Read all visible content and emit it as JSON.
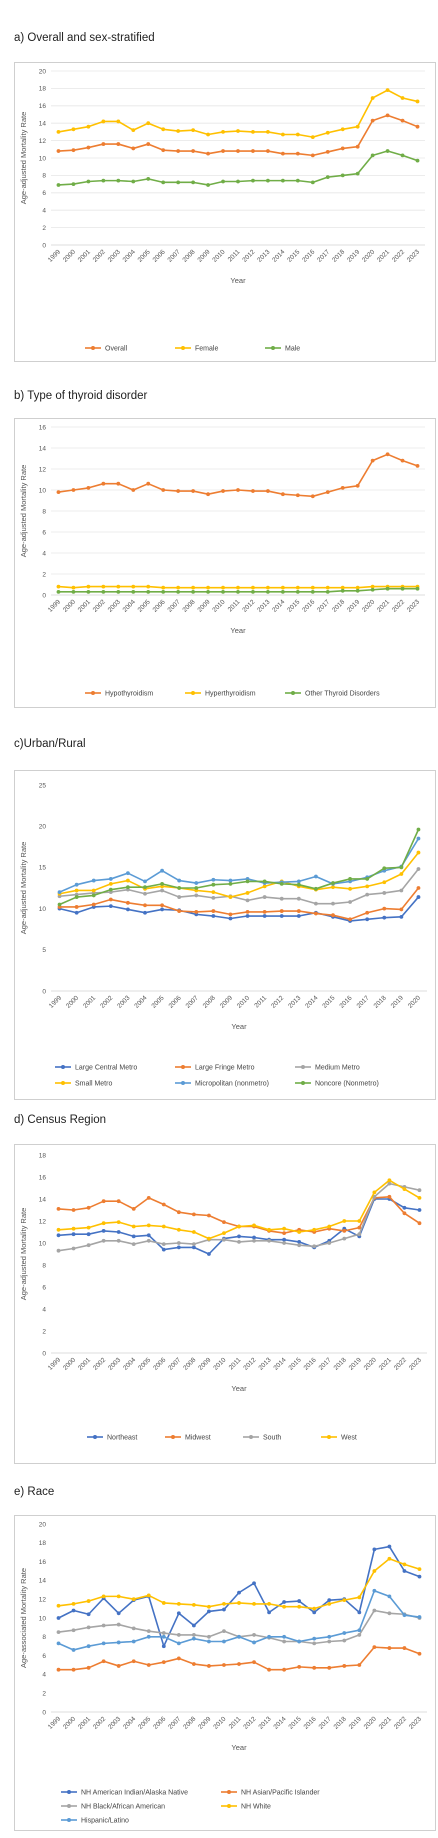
{
  "chart_data": [
    {
      "id": "a",
      "type": "line",
      "title": "a) Overall and sex-stratified",
      "xlabel": "Year",
      "ylabel": "Age-adjusted Mortality Rate",
      "ylim": [
        0,
        20
      ],
      "yticks": [
        0,
        2,
        4,
        6,
        8,
        10,
        12,
        14,
        16,
        18,
        20
      ],
      "grid": true,
      "legend": "bottom",
      "categories": [
        "1999",
        "2000",
        "2001",
        "2002",
        "2003",
        "2004",
        "2005",
        "2006",
        "2007",
        "2008",
        "2009",
        "2010",
        "2011",
        "2012",
        "2013",
        "2014",
        "2015",
        "2016",
        "2017",
        "2018",
        "2019",
        "2020",
        "2021",
        "2022",
        "2023"
      ],
      "series": [
        {
          "name": "Overall",
          "color": "#ed7d31",
          "values": [
            10.8,
            10.9,
            11.2,
            11.6,
            11.6,
            11.1,
            11.6,
            10.9,
            10.8,
            10.8,
            10.5,
            10.8,
            10.8,
            10.8,
            10.8,
            10.5,
            10.5,
            10.3,
            10.7,
            11.1,
            11.3,
            14.3,
            14.9,
            14.3,
            13.6
          ]
        },
        {
          "name": "Female",
          "color": "#ffc000",
          "values": [
            13.0,
            13.3,
            13.6,
            14.2,
            14.2,
            13.2,
            14.0,
            13.3,
            13.1,
            13.2,
            12.7,
            13.0,
            13.1,
            13.0,
            13.0,
            12.7,
            12.7,
            12.4,
            12.9,
            13.3,
            13.6,
            16.9,
            17.8,
            16.9,
            16.5
          ]
        },
        {
          "name": "Male",
          "color": "#70ad47",
          "values": [
            6.9,
            7.0,
            7.3,
            7.4,
            7.4,
            7.3,
            7.6,
            7.2,
            7.2,
            7.2,
            6.9,
            7.3,
            7.3,
            7.4,
            7.4,
            7.4,
            7.4,
            7.2,
            7.8,
            8.0,
            8.2,
            10.3,
            10.8,
            10.3,
            9.7
          ]
        }
      ]
    },
    {
      "id": "b",
      "type": "line",
      "title": "b) Type of thyroid disorder",
      "xlabel": "Year",
      "ylabel": "Age-adjusted Mortality Rate",
      "ylim": [
        0,
        16
      ],
      "yticks": [
        0,
        2,
        4,
        6,
        8,
        10,
        12,
        14,
        16
      ],
      "grid": true,
      "legend": "bottom",
      "categories": [
        "1999",
        "2000",
        "2001",
        "2002",
        "2003",
        "2004",
        "2005",
        "2006",
        "2007",
        "2008",
        "2009",
        "2010",
        "2011",
        "2012",
        "2013",
        "2014",
        "2015",
        "2016",
        "2017",
        "2018",
        "2019",
        "2020",
        "2021",
        "2022",
        "2023"
      ],
      "series": [
        {
          "name": "Hypothyroidism",
          "color": "#ed7d31",
          "values": [
            9.8,
            10.0,
            10.2,
            10.6,
            10.6,
            10.0,
            10.6,
            10.0,
            9.9,
            9.9,
            9.6,
            9.9,
            10.0,
            9.9,
            9.9,
            9.6,
            9.5,
            9.4,
            9.8,
            10.2,
            10.4,
            12.8,
            13.4,
            12.8,
            12.3
          ]
        },
        {
          "name": "Hyperthyroidism",
          "color": "#ffc000",
          "values": [
            0.8,
            0.7,
            0.8,
            0.8,
            0.8,
            0.8,
            0.8,
            0.7,
            0.7,
            0.7,
            0.7,
            0.7,
            0.7,
            0.7,
            0.7,
            0.7,
            0.7,
            0.7,
            0.7,
            0.7,
            0.7,
            0.8,
            0.8,
            0.8,
            0.8
          ]
        },
        {
          "name": "Other Thyroid Disorders",
          "color": "#70ad47",
          "values": [
            0.3,
            0.3,
            0.3,
            0.3,
            0.3,
            0.3,
            0.3,
            0.3,
            0.3,
            0.3,
            0.3,
            0.3,
            0.3,
            0.3,
            0.3,
            0.3,
            0.3,
            0.3,
            0.3,
            0.4,
            0.4,
            0.5,
            0.6,
            0.6,
            0.6
          ]
        }
      ]
    },
    {
      "id": "c",
      "type": "line",
      "title": "c)Urban/Rural",
      "xlabel": "Year",
      "ylabel": "Age-adjusted Mortality Rate",
      "ylim": [
        0,
        25
      ],
      "yticks": [
        0,
        5,
        10,
        15,
        20,
        25
      ],
      "grid": false,
      "legend": "bottom",
      "categories": [
        "1999",
        "2000",
        "2001",
        "2002",
        "2003",
        "2004",
        "2005",
        "2006",
        "2007",
        "2008",
        "2009",
        "2010",
        "2011",
        "2012",
        "2013",
        "2014",
        "2015",
        "2016",
        "2017",
        "2018",
        "2019",
        "2020"
      ],
      "series": [
        {
          "name": "Large Central Metro",
          "color": "#4472c4",
          "values": [
            10.0,
            9.5,
            10.2,
            10.3,
            9.9,
            9.5,
            9.9,
            9.8,
            9.3,
            9.1,
            8.8,
            9.1,
            9.1,
            9.1,
            9.1,
            9.5,
            9.0,
            8.5,
            8.7,
            8.9,
            9.0,
            11.4
          ]
        },
        {
          "name": "Large Fringe Metro",
          "color": "#ed7d31",
          "values": [
            10.2,
            10.2,
            10.5,
            11.1,
            10.7,
            10.4,
            10.4,
            9.7,
            9.6,
            9.7,
            9.3,
            9.6,
            9.6,
            9.7,
            9.7,
            9.4,
            9.2,
            8.7,
            9.5,
            10.0,
            9.9,
            12.5
          ]
        },
        {
          "name": "Medium Metro",
          "color": "#a5a5a5",
          "values": [
            11.5,
            11.7,
            11.9,
            12.0,
            12.3,
            11.8,
            12.2,
            11.4,
            11.6,
            11.3,
            11.5,
            11.0,
            11.4,
            11.2,
            11.2,
            10.6,
            10.6,
            10.8,
            11.7,
            11.9,
            12.2,
            14.8
          ]
        },
        {
          "name": "Small Metro",
          "color": "#ffc000",
          "values": [
            11.8,
            12.2,
            12.2,
            13.0,
            13.4,
            12.4,
            12.7,
            12.5,
            12.2,
            12.0,
            11.4,
            11.9,
            12.7,
            13.3,
            12.7,
            12.3,
            12.6,
            12.4,
            12.7,
            13.2,
            14.2,
            16.8
          ]
        },
        {
          "name": "Micropolitan (nonmetro)",
          "color": "#5b9bd5",
          "values": [
            12.0,
            12.9,
            13.4,
            13.6,
            14.3,
            13.3,
            14.6,
            13.4,
            13.1,
            13.5,
            13.4,
            13.6,
            13.1,
            13.2,
            13.3,
            13.9,
            13.0,
            13.3,
            13.8,
            14.6,
            15.1,
            18.5
          ]
        },
        {
          "name": "Noncore (Nonmetro)",
          "color": "#70ad47",
          "values": [
            10.5,
            11.4,
            11.6,
            12.3,
            12.6,
            12.6,
            13.0,
            12.5,
            12.5,
            12.9,
            13.0,
            13.3,
            13.3,
            13.0,
            12.9,
            12.4,
            13.1,
            13.6,
            13.6,
            14.9,
            15.0,
            19.6
          ]
        }
      ]
    },
    {
      "id": "d",
      "type": "line",
      "title": "d) Census Region",
      "xlabel": "Year",
      "ylabel": "Age-adjusted Mortality Rate",
      "ylim": [
        0,
        18
      ],
      "yticks": [
        0,
        2,
        4,
        6,
        8,
        10,
        12,
        14,
        16,
        18
      ],
      "grid": false,
      "legend": "bottom",
      "categories": [
        "1999",
        "2000",
        "2001",
        "2002",
        "2003",
        "2004",
        "2005",
        "2006",
        "2007",
        "2008",
        "2009",
        "2010",
        "2011",
        "2012",
        "2013",
        "2014",
        "2015",
        "2016",
        "2017",
        "2018",
        "2019",
        "2020",
        "2021",
        "2022",
        "2023"
      ],
      "series": [
        {
          "name": "Northeast",
          "color": "#4472c4",
          "values": [
            10.7,
            10.8,
            10.8,
            11.1,
            11.0,
            10.6,
            10.7,
            9.4,
            9.6,
            9.6,
            9.0,
            10.4,
            10.6,
            10.5,
            10.3,
            10.3,
            10.1,
            9.6,
            10.2,
            11.3,
            10.6,
            14.0,
            14.0,
            13.2,
            13.0
          ]
        },
        {
          "name": "Midwest",
          "color": "#ed7d31",
          "values": [
            13.1,
            13.0,
            13.2,
            13.8,
            13.8,
            13.1,
            14.1,
            13.5,
            12.8,
            12.6,
            12.5,
            11.9,
            11.5,
            11.5,
            11.1,
            10.9,
            11.2,
            11.0,
            11.3,
            11.1,
            11.4,
            14.1,
            14.2,
            12.7,
            11.8
          ]
        },
        {
          "name": "South",
          "color": "#a5a5a5",
          "values": [
            9.3,
            9.5,
            9.8,
            10.2,
            10.2,
            9.9,
            10.2,
            9.9,
            10.0,
            9.9,
            10.3,
            10.3,
            10.1,
            10.2,
            10.2,
            10.0,
            9.8,
            9.7,
            10.0,
            10.4,
            10.8,
            14.2,
            15.4,
            15.1,
            14.8
          ]
        },
        {
          "name": "West",
          "color": "#ffc000",
          "values": [
            11.2,
            11.3,
            11.4,
            11.8,
            11.9,
            11.5,
            11.6,
            11.5,
            11.2,
            11.0,
            10.4,
            10.9,
            11.5,
            11.6,
            11.2,
            11.3,
            11.0,
            11.2,
            11.5,
            12.0,
            12.0,
            14.6,
            15.7,
            14.9,
            14.1
          ]
        }
      ]
    },
    {
      "id": "e",
      "type": "line",
      "title": "e) Race",
      "xlabel": "Year",
      "ylabel": "Age-associated Mortality Rate",
      "ylim": [
        0,
        20
      ],
      "yticks": [
        0,
        2,
        4,
        6,
        8,
        10,
        12,
        14,
        16,
        18,
        20
      ],
      "grid": false,
      "legend": "bottom",
      "categories": [
        "1999",
        "2000",
        "2001",
        "2002",
        "2003",
        "2004",
        "2005",
        "2006",
        "2007",
        "2008",
        "2009",
        "2010",
        "2011",
        "2012",
        "2013",
        "2014",
        "2015",
        "2016",
        "2017",
        "2018",
        "2019",
        "2020",
        "2021",
        "2022",
        "2023"
      ],
      "series": [
        {
          "name": "NH American Indian/Alaska Native",
          "color": "#4472c4",
          "values": [
            10.0,
            10.8,
            10.4,
            12.1,
            10.5,
            11.9,
            12.3,
            7.0,
            10.5,
            9.2,
            10.7,
            10.9,
            12.7,
            13.7,
            10.6,
            11.7,
            11.8,
            10.6,
            11.9,
            12.0,
            10.6,
            17.3,
            17.6,
            15.0,
            14.4
          ]
        },
        {
          "name": "NH Asian/Pacific Islander",
          "color": "#ed7d31",
          "values": [
            4.5,
            4.5,
            4.7,
            5.4,
            4.9,
            5.4,
            5.0,
            5.3,
            5.7,
            5.1,
            4.9,
            5.0,
            5.1,
            5.3,
            4.5,
            4.5,
            4.8,
            4.7,
            4.7,
            4.9,
            5.0,
            6.9,
            6.8,
            6.8,
            6.2
          ]
        },
        {
          "name": "NH Black/African American",
          "color": "#a5a5a5",
          "values": [
            8.5,
            8.7,
            9.0,
            9.2,
            9.3,
            8.9,
            8.6,
            8.4,
            8.2,
            8.2,
            8.0,
            8.6,
            8.0,
            8.2,
            7.9,
            7.5,
            7.5,
            7.3,
            7.5,
            7.6,
            8.2,
            10.8,
            10.5,
            10.4,
            10.0
          ]
        },
        {
          "name": "NH White",
          "color": "#ffc000",
          "values": [
            11.3,
            11.5,
            11.8,
            12.3,
            12.3,
            12.0,
            12.4,
            11.6,
            11.5,
            11.4,
            11.2,
            11.5,
            11.6,
            11.5,
            11.5,
            11.2,
            11.2,
            11.0,
            11.5,
            11.9,
            12.2,
            15.0,
            16.3,
            15.7,
            15.2
          ]
        },
        {
          "name": "Hispanic/Latino",
          "color": "#5b9bd5",
          "values": [
            7.3,
            6.6,
            7.0,
            7.3,
            7.4,
            7.5,
            8.0,
            8.0,
            7.3,
            7.8,
            7.5,
            7.5,
            8.0,
            7.4,
            8.0,
            8.0,
            7.5,
            7.8,
            8.0,
            8.4,
            8.7,
            12.9,
            12.3,
            10.3,
            10.1
          ]
        }
      ]
    }
  ]
}
